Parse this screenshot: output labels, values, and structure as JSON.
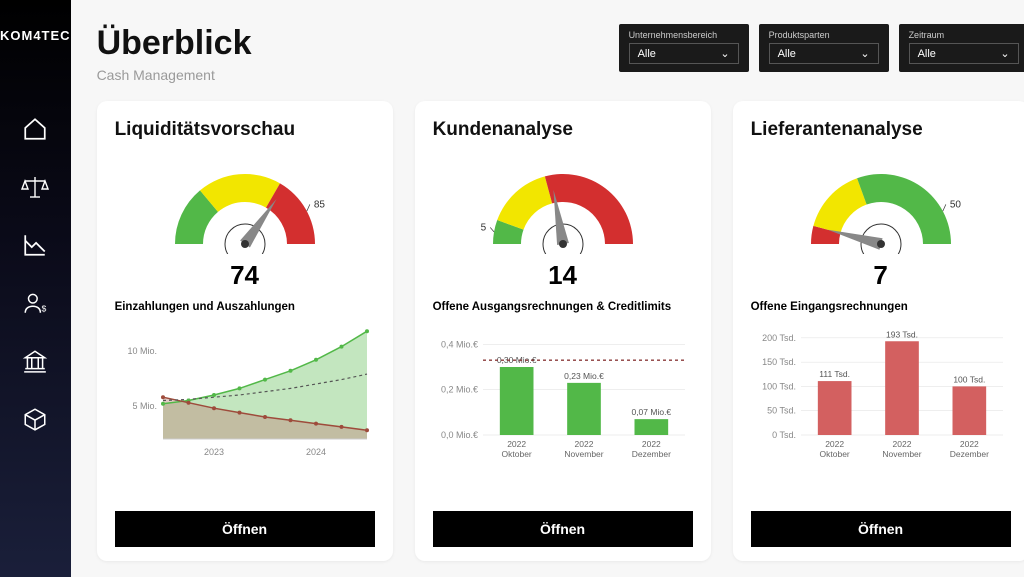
{
  "brand": "KOM4TEC",
  "header": {
    "title": "Überblick",
    "subtitle": "Cash Management"
  },
  "filters": [
    {
      "label": "Unternehmensbereich",
      "value": "Alle"
    },
    {
      "label": "Produktsparten",
      "value": "Alle"
    },
    {
      "label": "Zeitraum",
      "value": "Alle"
    }
  ],
  "colors": {
    "green": "#52b848",
    "yellow": "#f2e600",
    "red": "#d32f2f",
    "needle": "#888888",
    "area_green": "#52b848",
    "area_red": "#c18b7e",
    "dotted": "#555555",
    "bar_green": "#52b848",
    "bar_red": "#d36060",
    "grid": "#dddddd",
    "text": "#333333"
  },
  "cards": {
    "liquidity": {
      "title": "Liquiditätsvorschau",
      "gauge": {
        "segments": [
          {
            "from": 180,
            "to": 130,
            "color": "#52b848"
          },
          {
            "from": 130,
            "to": 60,
            "color": "#f2e600"
          },
          {
            "from": 60,
            "to": 0,
            "color": "#d32f2f"
          }
        ],
        "needle_angle": 55,
        "side_label": "85",
        "value": "74"
      },
      "sub_title": "Einzahlungen und Auszahlungen",
      "line_chart": {
        "y_ticks": [
          "10 Mio.",
          "5 Mio."
        ],
        "x_ticks": [
          "2023",
          "2024"
        ],
        "series_up": [
          5.2,
          5.5,
          6.0,
          6.6,
          7.4,
          8.2,
          9.2,
          10.4,
          11.8
        ],
        "series_down": [
          5.8,
          5.3,
          4.8,
          4.4,
          4.0,
          3.7,
          3.4,
          3.1,
          2.8
        ],
        "series_dot": [
          5.5,
          5.6,
          5.8,
          6.0,
          6.3,
          6.6,
          7.0,
          7.4,
          7.9
        ],
        "y_domain": [
          2,
          12
        ]
      },
      "open": "Öffnen"
    },
    "customers": {
      "title": "Kundenanalyse",
      "gauge": {
        "segments": [
          {
            "from": 180,
            "to": 160,
            "color": "#52b848"
          },
          {
            "from": 160,
            "to": 105,
            "color": "#f2e600"
          },
          {
            "from": 105,
            "to": 0,
            "color": "#d32f2f"
          }
        ],
        "needle_angle": 100,
        "side_label": "5",
        "side_label_pos": "left",
        "value": "14"
      },
      "sub_title": "Offene Ausgangsrechnungen & Creditlimits",
      "bar_chart": {
        "y_ticks": [
          "0,4 Mio.€",
          "0,2 Mio.€",
          "0,0 Mio.€"
        ],
        "y_domain": [
          0,
          0.45
        ],
        "ref_line": 0.33,
        "bars": [
          {
            "cat1": "2022",
            "cat2": "Oktober",
            "value": 0.3,
            "label": "0,30 Mio.€"
          },
          {
            "cat1": "2022",
            "cat2": "November",
            "value": 0.23,
            "label": "0,23 Mio.€"
          },
          {
            "cat1": "2022",
            "cat2": "Dezember",
            "value": 0.07,
            "label": "0,07 Mio.€"
          }
        ],
        "color": "#52b848"
      },
      "open": "Öffnen"
    },
    "suppliers": {
      "title": "Lieferantenanalyse",
      "gauge": {
        "segments": [
          {
            "from": 180,
            "to": 110,
            "color": "#f2e600"
          },
          {
            "from": 110,
            "to": 30,
            "color": "#52b848"
          },
          {
            "from": 30,
            "to": 0,
            "color": "#d32f2f"
          }
        ],
        "alt_segments": [
          {
            "from": 180,
            "to": 165,
            "color": "#d32f2f"
          },
          {
            "from": 165,
            "to": 110,
            "color": "#f2e600"
          },
          {
            "from": 110,
            "to": 0,
            "color": "#52b848"
          }
        ],
        "needle_angle": 165,
        "side_label": "50",
        "value": "7"
      },
      "sub_title": "Offene Eingangsrechnungen",
      "bar_chart": {
        "y_ticks": [
          "200 Tsd.",
          "150 Tsd.",
          "100 Tsd.",
          "50 Tsd.",
          "0 Tsd."
        ],
        "y_domain": [
          0,
          210
        ],
        "bars": [
          {
            "cat1": "2022",
            "cat2": "Oktober",
            "value": 111,
            "label": "111 Tsd."
          },
          {
            "cat1": "2022",
            "cat2": "November",
            "value": 193,
            "label": "193 Tsd."
          },
          {
            "cat1": "2022",
            "cat2": "Dezember",
            "value": 100,
            "label": "100 Tsd."
          }
        ],
        "color": "#d36060"
      },
      "open": "Öffnen"
    }
  }
}
